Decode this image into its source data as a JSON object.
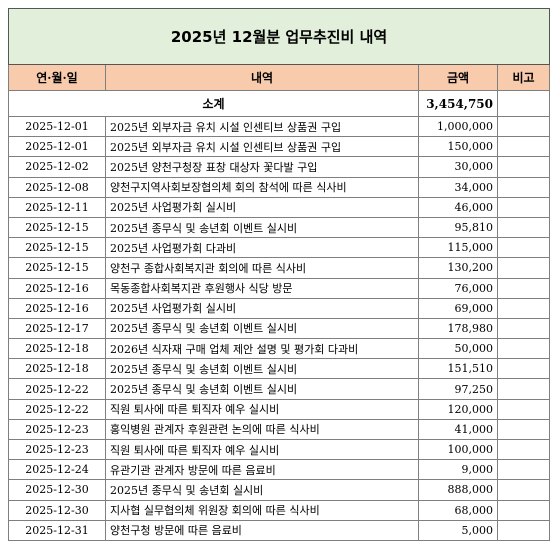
{
  "header": {
    "title": "2025년 12월분 업무추진비 내역"
  },
  "table": {
    "columns": [
      "연·월·일",
      "내역",
      "금액",
      "비고"
    ],
    "subtotal": {
      "label": "소계",
      "amount": "3,454,750"
    },
    "rows": [
      [
        "2025-12-01",
        "2025년 외부자금 유치 시설 인센티브 상품권 구입",
        "1,000,000"
      ],
      [
        "2025-12-01",
        "2025년 외부자금 유치 시설 인센티브 상품권 구입",
        "150,000"
      ],
      [
        "2025-12-02",
        "2025년 양천구청장 표창 대상자 꽃다발 구입",
        "30,000"
      ],
      [
        "2025-12-08",
        "양천구지역사회보장협의체 회의 참석에 따른 식사비",
        "34,000"
      ],
      [
        "2025-12-11",
        "2025년 사업평가회 실시비",
        "46,000"
      ],
      [
        "2025-12-15",
        "2025년 종무식 및 송년회 이벤트 실시비",
        "95,810"
      ],
      [
        "2025-12-15",
        "2025년 사업평가회 다과비",
        "115,000"
      ],
      [
        "2025-12-15",
        "양천구 종합사회복지관 회의에 따른 식사비",
        "130,200"
      ],
      [
        "2025-12-16",
        "목동종합사회복지관 후원행사 식당 방문",
        "76,000"
      ],
      [
        "2025-12-16",
        "2025년 사업평가회 실시비",
        "69,000"
      ],
      [
        "2025-12-17",
        "2025년 종무식 및 송년회 이벤트 실시비",
        "178,980"
      ],
      [
        "2025-12-18",
        "2026년 식자재 구매 업체 제안 설명 및 평가회 다과비",
        "50,000"
      ],
      [
        "2025-12-18",
        "2025년 종무식 및 송년회 이벤트 실시비",
        "151,510"
      ],
      [
        "2025-12-22",
        "2025년 종무식 및 송년회 이벤트 실시비",
        "97,250"
      ],
      [
        "2025-12-22",
        "직원 퇴사에 따른 퇴직자 예우 실시비",
        "120,000"
      ],
      [
        "2025-12-23",
        "홍익병원 관계자 후원관련 논의에 따른 식사비",
        "41,000"
      ],
      [
        "2025-12-23",
        "직원 퇴사에 따른 퇴직자 예우 실시비",
        "100,000"
      ],
      [
        "2025-12-24",
        "유관기관 관계자 방문에 따른 음료비",
        "9,000"
      ],
      [
        "2025-12-30",
        "2025년 종무식 및 송년회 실시비",
        "888,000"
      ],
      [
        "2025-12-30",
        "지사협 실무협의체 위원장 회의에 따른 식사비",
        "68,000"
      ],
      [
        "2025-12-31",
        "양천구청 방문에 따른 음료비",
        "5,000"
      ]
    ]
  }
}
